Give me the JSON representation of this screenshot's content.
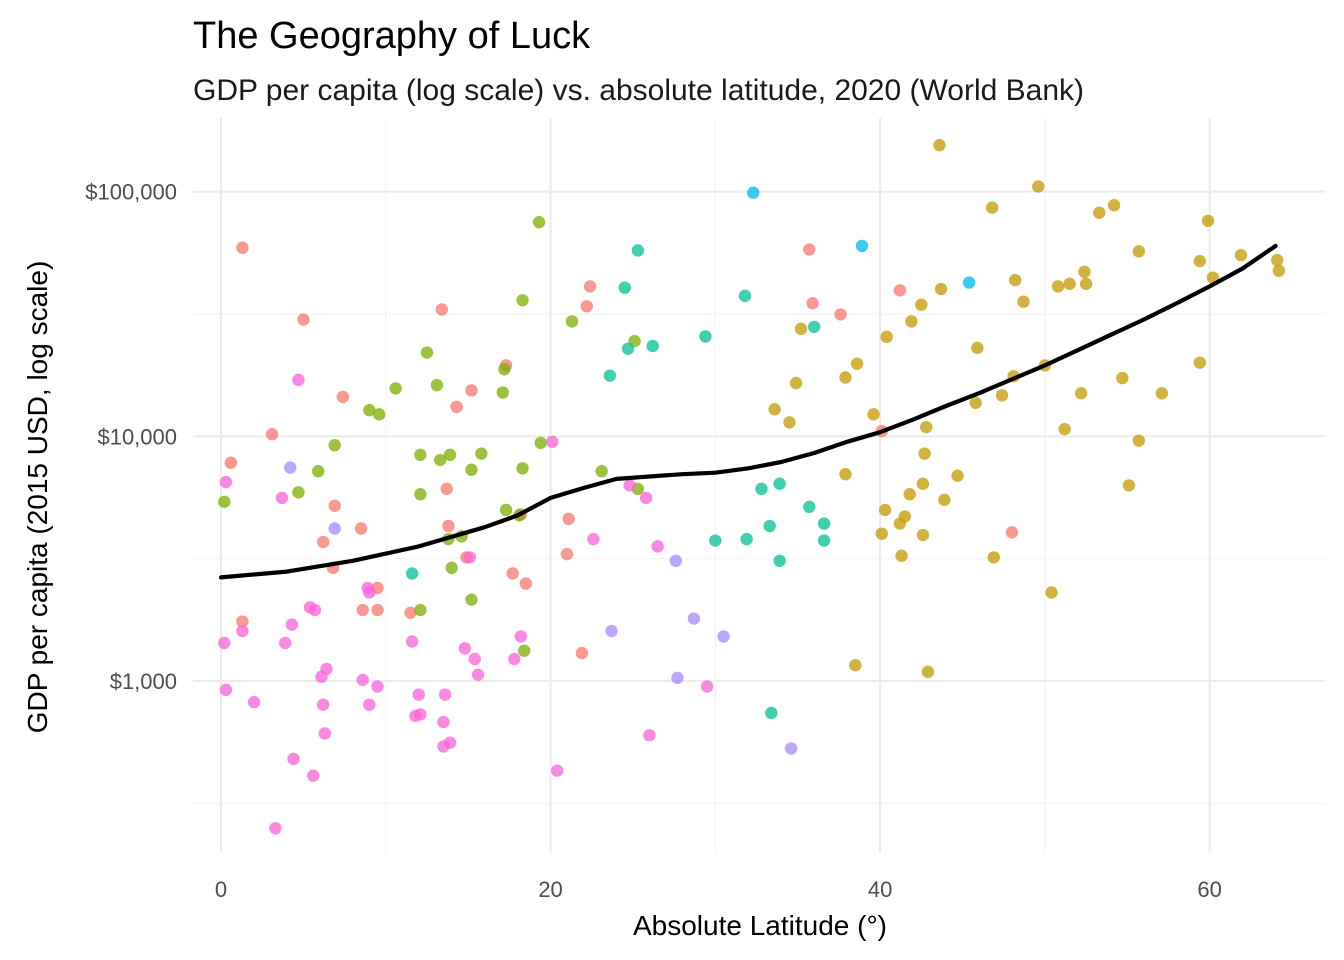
{
  "chart_data": {
    "type": "scatter",
    "title": "The Geography of Luck",
    "subtitle": "GDP per capita (log scale) vs. absolute latitude, 2020 (World Bank)",
    "xlabel": "Absolute Latitude (°)",
    "ylabel": "GDP per capita (2015 USD, log scale)",
    "xlim": [
      -1.7,
      67
    ],
    "ylim": [
      200,
      200000
    ],
    "y_scale": "log10",
    "x_ticks": [
      0,
      20,
      40,
      60
    ],
    "x_tick_labels": [
      "0",
      "20",
      "40",
      "60"
    ],
    "y_ticks": [
      1000,
      10000,
      100000
    ],
    "y_tick_labels": [
      "$1,000",
      "$10,000",
      "$100,000"
    ],
    "grid": true,
    "legend": "none",
    "series": [
      {
        "color": "#F8766D",
        "points": [
          [
            1.3,
            59000
          ],
          [
            0.6,
            7800
          ],
          [
            1.3,
            1750
          ],
          [
            3.1,
            10200
          ],
          [
            5.0,
            30000
          ],
          [
            7.4,
            14500
          ],
          [
            6.9,
            5200
          ],
          [
            6.2,
            3700
          ],
          [
            6.8,
            2900
          ],
          [
            8.5,
            4200
          ],
          [
            8.6,
            1950
          ],
          [
            9.5,
            1950
          ],
          [
            9.5,
            2400
          ],
          [
            11.5,
            1900
          ],
          [
            13.4,
            33000
          ],
          [
            14.3,
            13200
          ],
          [
            15.2,
            15400
          ],
          [
            13.7,
            6100
          ],
          [
            13.8,
            4300
          ],
          [
            14.9,
            3200
          ],
          [
            17.3,
            19500
          ],
          [
            17.7,
            2750
          ],
          [
            18.5,
            2500
          ],
          [
            18.2,
            4800
          ],
          [
            21.1,
            4600
          ],
          [
            21.0,
            3300
          ],
          [
            22.4,
            41000
          ],
          [
            22.2,
            34000
          ],
          [
            21.9,
            1300
          ],
          [
            35.7,
            58000
          ],
          [
            35.9,
            35000
          ],
          [
            37.6,
            31500
          ],
          [
            41.2,
            39500
          ],
          [
            40.1,
            10500
          ],
          [
            48.0,
            4050
          ]
        ]
      },
      {
        "color": "#7CAE00",
        "points": [
          [
            0.2,
            5400
          ],
          [
            4.7,
            5900
          ],
          [
            5.9,
            7200
          ],
          [
            6.9,
            9200
          ],
          [
            10.6,
            15700
          ],
          [
            9.0,
            12800
          ],
          [
            9.6,
            12300
          ],
          [
            12.1,
            8400
          ],
          [
            12.1,
            5800
          ],
          [
            12.1,
            1950
          ],
          [
            12.5,
            22000
          ],
          [
            13.1,
            16200
          ],
          [
            13.3,
            8000
          ],
          [
            13.9,
            8400
          ],
          [
            13.8,
            3800
          ],
          [
            14.0,
            2900
          ],
          [
            14.6,
            3900
          ],
          [
            15.2,
            2150
          ],
          [
            15.2,
            7300
          ],
          [
            15.8,
            8500
          ],
          [
            17.1,
            15100
          ],
          [
            17.2,
            18800
          ],
          [
            17.3,
            5000
          ],
          [
            18.1,
            4750
          ],
          [
            18.3,
            36000
          ],
          [
            18.3,
            7400
          ],
          [
            18.4,
            1330
          ],
          [
            19.3,
            75000
          ],
          [
            19.4,
            9400
          ],
          [
            21.3,
            29500
          ],
          [
            23.1,
            7200
          ],
          [
            25.1,
            24500
          ],
          [
            25.3,
            6100
          ]
        ]
      },
      {
        "color": "#C49A00",
        "points": [
          [
            43.6,
            155000
          ],
          [
            46.8,
            86000
          ],
          [
            49.6,
            105000
          ],
          [
            53.3,
            82000
          ],
          [
            54.2,
            88000
          ],
          [
            55.7,
            57000
          ],
          [
            59.4,
            52000
          ],
          [
            59.9,
            76000
          ],
          [
            60.2,
            44500
          ],
          [
            61.9,
            55000
          ],
          [
            64.1,
            52500
          ],
          [
            64.2,
            47500
          ],
          [
            52.4,
            47000
          ],
          [
            51.5,
            42000
          ],
          [
            52.5,
            42000
          ],
          [
            50.8,
            41000
          ],
          [
            48.2,
            43500
          ],
          [
            48.7,
            35500
          ],
          [
            43.7,
            40000
          ],
          [
            42.5,
            34500
          ],
          [
            41.9,
            29500
          ],
          [
            40.4,
            25500
          ],
          [
            35.2,
            27500
          ],
          [
            38.6,
            19800
          ],
          [
            37.9,
            17400
          ],
          [
            34.9,
            16500
          ],
          [
            33.6,
            12900
          ],
          [
            34.5,
            11400
          ],
          [
            39.6,
            12300
          ],
          [
            42.8,
            10900
          ],
          [
            45.9,
            23000
          ],
          [
            48.1,
            17600
          ],
          [
            50.0,
            19500
          ],
          [
            51.2,
            10700
          ],
          [
            52.2,
            15000
          ],
          [
            54.7,
            17300
          ],
          [
            55.7,
            9600
          ],
          [
            57.1,
            15000
          ],
          [
            59.4,
            20000
          ],
          [
            45.8,
            13700
          ],
          [
            47.4,
            14700
          ],
          [
            42.7,
            8500
          ],
          [
            42.6,
            6400
          ],
          [
            44.7,
            6900
          ],
          [
            41.8,
            5800
          ],
          [
            41.5,
            4700
          ],
          [
            40.3,
            5000
          ],
          [
            41.2,
            4400
          ],
          [
            40.1,
            4000
          ],
          [
            42.6,
            3950
          ],
          [
            43.9,
            5500
          ],
          [
            37.9,
            7000
          ],
          [
            41.3,
            3250
          ],
          [
            46.9,
            3200
          ],
          [
            50.4,
            2300
          ],
          [
            38.5,
            1160
          ],
          [
            42.9,
            1090
          ],
          [
            55.1,
            6300
          ]
        ]
      },
      {
        "color": "#00C094",
        "points": [
          [
            25.3,
            57500
          ],
          [
            24.5,
            40500
          ],
          [
            31.8,
            37500
          ],
          [
            29.4,
            25600
          ],
          [
            24.7,
            22800
          ],
          [
            26.2,
            23400
          ],
          [
            23.6,
            17700
          ],
          [
            36.0,
            28000
          ],
          [
            32.8,
            6100
          ],
          [
            33.9,
            6400
          ],
          [
            33.3,
            4300
          ],
          [
            35.7,
            5150
          ],
          [
            36.6,
            4400
          ],
          [
            36.6,
            3750
          ],
          [
            30.0,
            3750
          ],
          [
            31.9,
            3800
          ],
          [
            33.9,
            3100
          ],
          [
            33.4,
            740
          ],
          [
            11.6,
            2750
          ]
        ]
      },
      {
        "color": "#00B6EB",
        "points": [
          [
            32.3,
            99000
          ],
          [
            38.9,
            60000
          ],
          [
            45.4,
            42500
          ]
        ]
      },
      {
        "color": "#A58AFF",
        "points": [
          [
            4.2,
            7450
          ],
          [
            6.9,
            4200
          ],
          [
            23.7,
            1600
          ],
          [
            27.6,
            3100
          ],
          [
            27.7,
            1030
          ],
          [
            28.7,
            1800
          ],
          [
            30.5,
            1520
          ],
          [
            34.6,
            530
          ]
        ]
      },
      {
        "color": "#FB61D7",
        "points": [
          [
            0.3,
            6500
          ],
          [
            0.2,
            1430
          ],
          [
            0.3,
            920
          ],
          [
            1.3,
            1600
          ],
          [
            2.0,
            820
          ],
          [
            3.3,
            250
          ],
          [
            3.7,
            5600
          ],
          [
            3.9,
            1430
          ],
          [
            4.3,
            1700
          ],
          [
            4.4,
            480
          ],
          [
            4.7,
            17000
          ],
          [
            5.4,
            2000
          ],
          [
            5.7,
            1950
          ],
          [
            5.6,
            410
          ],
          [
            6.1,
            1040
          ],
          [
            6.2,
            800
          ],
          [
            6.3,
            610
          ],
          [
            6.4,
            1120
          ],
          [
            8.6,
            1010
          ],
          [
            8.9,
            2400
          ],
          [
            9.0,
            2300
          ],
          [
            9.0,
            800
          ],
          [
            9.5,
            950
          ],
          [
            11.6,
            1450
          ],
          [
            11.8,
            720
          ],
          [
            12.0,
            880
          ],
          [
            12.1,
            730
          ],
          [
            13.5,
            680
          ],
          [
            13.6,
            880
          ],
          [
            13.5,
            540
          ],
          [
            13.9,
            560
          ],
          [
            14.8,
            1360
          ],
          [
            15.1,
            3200
          ],
          [
            15.4,
            1230
          ],
          [
            15.6,
            1060
          ],
          [
            17.8,
            1230
          ],
          [
            18.2,
            1520
          ],
          [
            20.1,
            9500
          ],
          [
            20.4,
            430
          ],
          [
            22.6,
            3800
          ],
          [
            24.8,
            6300
          ],
          [
            25.8,
            5600
          ],
          [
            26.5,
            3550
          ],
          [
            26.0,
            600
          ],
          [
            29.5,
            950
          ]
        ]
      }
    ],
    "trend_line": {
      "color": "#000000",
      "points": [
        [
          0,
          2650
        ],
        [
          4,
          2800
        ],
        [
          8,
          3100
        ],
        [
          12,
          3550
        ],
        [
          16,
          4250
        ],
        [
          18,
          4750
        ],
        [
          20,
          5600
        ],
        [
          22,
          6150
        ],
        [
          24,
          6700
        ],
        [
          26,
          6850
        ],
        [
          28,
          7000
        ],
        [
          30,
          7100
        ],
        [
          32,
          7400
        ],
        [
          34,
          7850
        ],
        [
          36,
          8550
        ],
        [
          38,
          9500
        ],
        [
          40,
          10400
        ],
        [
          42,
          11700
        ],
        [
          44,
          13300
        ],
        [
          46,
          15000
        ],
        [
          48,
          17100
        ],
        [
          50,
          19500
        ],
        [
          52,
          22500
        ],
        [
          54,
          26000
        ],
        [
          56,
          30000
        ],
        [
          58,
          35000
        ],
        [
          60,
          41000
        ],
        [
          62,
          48500
        ],
        [
          64,
          60000
        ]
      ]
    }
  }
}
